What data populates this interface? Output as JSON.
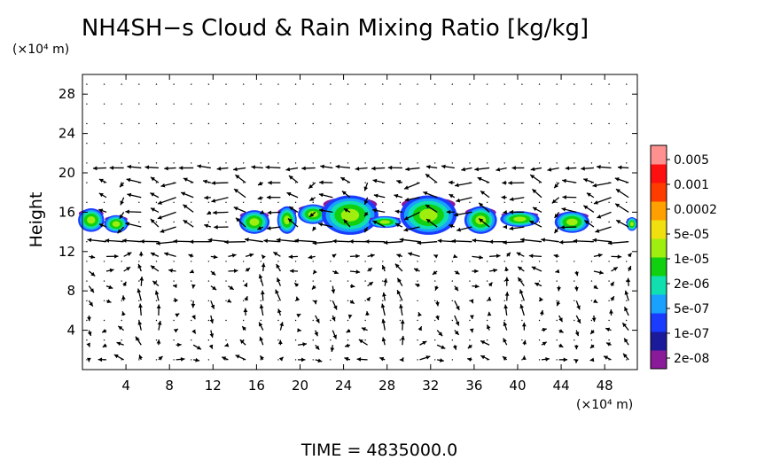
{
  "chart_data": {
    "type": "heatmap",
    "title": "NH4SH−s Cloud & Rain Mixing Ratio [kg/kg]",
    "ylabel": "Height",
    "yunit": "(×10⁴ m)",
    "xunit": "(×10⁴ m)",
    "time_label": "TIME  =  4835000.0",
    "xlim": [
      0,
      51
    ],
    "ylim": [
      0,
      30
    ],
    "x_ticks": [
      "4",
      "8",
      "12",
      "16",
      "20",
      "24",
      "28",
      "32",
      "36",
      "40",
      "44",
      "48"
    ],
    "y_ticks": [
      "4",
      "8",
      "12",
      "16",
      "20",
      "24",
      "28"
    ],
    "x_tick_values": [
      4,
      8,
      12,
      16,
      20,
      24,
      28,
      32,
      36,
      40,
      44,
      48
    ],
    "y_tick_values": [
      4,
      8,
      12,
      16,
      20,
      24,
      28
    ],
    "colorbar": {
      "labels": [
        "0.005",
        "0.001",
        "0.0002",
        "5e-05",
        "1e-05",
        "2e-06",
        "5e-07",
        "1e-07",
        "2e-08"
      ],
      "colors": [
        "#8a1a9a",
        "#1a1a9a",
        "#1a3cff",
        "#1aa0ff",
        "#10e0b0",
        "#10d010",
        "#a0ee10",
        "#f0e010",
        "#ffa000",
        "#ff3c00",
        "#ff1010",
        "#ff9090"
      ]
    },
    "cloud_cells": [
      {
        "x": 0.8,
        "y": 15.2,
        "rx": 1.2,
        "ry": 1.2
      },
      {
        "x": 3.1,
        "y": 14.8,
        "rx": 1.1,
        "ry": 0.9
      },
      {
        "x": 15.8,
        "y": 15.0,
        "rx": 1.4,
        "ry": 1.2
      },
      {
        "x": 18.8,
        "y": 15.2,
        "rx": 0.9,
        "ry": 1.4
      },
      {
        "x": 21.2,
        "y": 15.8,
        "rx": 1.4,
        "ry": 1.0
      },
      {
        "x": 24.6,
        "y": 15.7,
        "rx": 2.6,
        "ry": 2.0
      },
      {
        "x": 27.8,
        "y": 15.0,
        "rx": 1.5,
        "ry": 0.6
      },
      {
        "x": 31.8,
        "y": 15.7,
        "rx": 2.6,
        "ry": 2.0
      },
      {
        "x": 36.6,
        "y": 15.2,
        "rx": 1.5,
        "ry": 1.4
      },
      {
        "x": 40.2,
        "y": 15.3,
        "rx": 1.8,
        "ry": 0.8
      },
      {
        "x": 45.0,
        "y": 15.0,
        "rx": 1.6,
        "ry": 1.1
      },
      {
        "x": 50.5,
        "y": 14.8,
        "rx": 0.5,
        "ry": 0.7
      }
    ],
    "wind_field": {
      "description": "velocity vector arrows on a regular grid",
      "x_spacing": 1.6,
      "y_spacing": 2.0
    }
  }
}
